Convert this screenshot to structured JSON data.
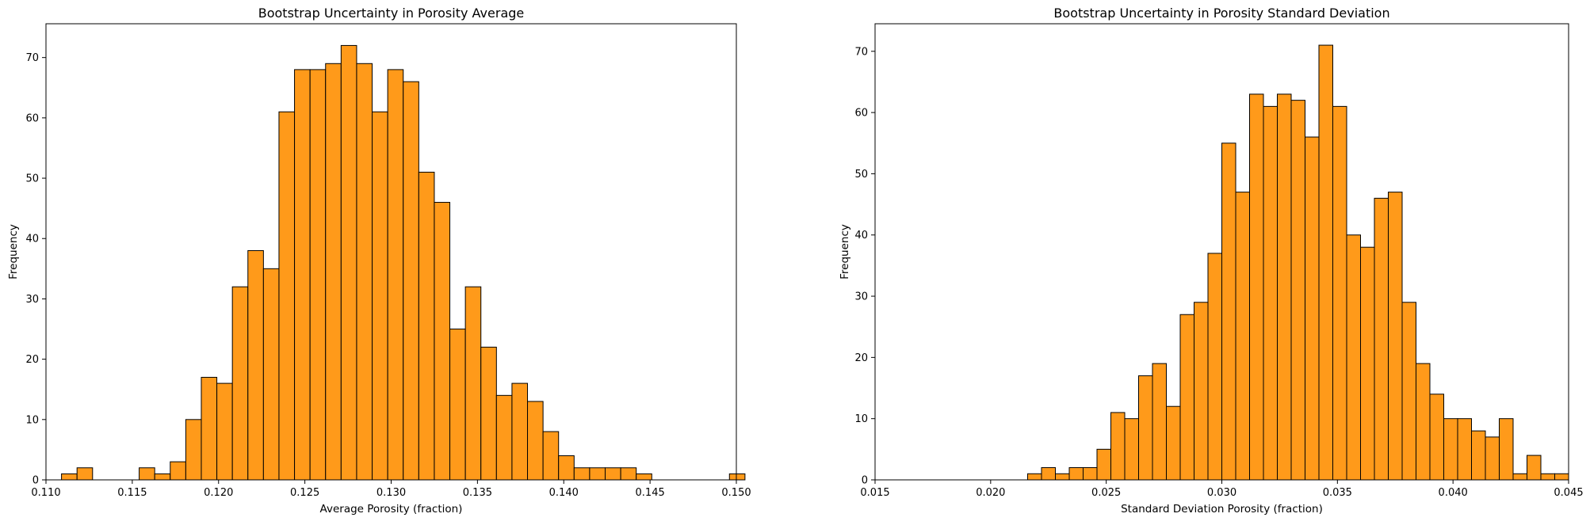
{
  "chart_data": [
    {
      "type": "bar",
      "title": "Bootstrap Uncertainty in Porosity Average",
      "xlabel": "Average Porosity (fraction)",
      "ylabel": "Frequency",
      "xlim": [
        0.11,
        0.15
      ],
      "ylim": [
        0,
        75.6
      ],
      "xticks": [
        "0.110",
        "0.115",
        "0.120",
        "0.125",
        "0.130",
        "0.135",
        "0.140",
        "0.145",
        "0.150"
      ],
      "yticks": [
        "0",
        "10",
        "20",
        "30",
        "40",
        "50",
        "60",
        "70"
      ],
      "bin_start": 0.11,
      "bin_width": 0.0009,
      "values": [
        0,
        1,
        2,
        0,
        0,
        0,
        2,
        1,
        3,
        10,
        17,
        16,
        32,
        38,
        35,
        61,
        68,
        68,
        69,
        72,
        69,
        61,
        68,
        66,
        51,
        46,
        25,
        32,
        22,
        14,
        16,
        13,
        8,
        4,
        2,
        2,
        2,
        2,
        1,
        0,
        0,
        0,
        0,
        0,
        1
      ],
      "bar_color": "#ff9a1a",
      "edge_color": "#000000",
      "grid": false
    },
    {
      "type": "bar",
      "title": "Bootstrap Uncertainty in Porosity Standard Deviation",
      "xlabel": "Standard Deviation Porosity (fraction)",
      "ylabel": "Frequency",
      "xlim": [
        0.015,
        0.045
      ],
      "ylim": [
        0,
        74.5
      ],
      "xticks": [
        "0.015",
        "0.020",
        "0.025",
        "0.030",
        "0.035",
        "0.040",
        "0.045"
      ],
      "yticks": [
        "0",
        "10",
        "20",
        "30",
        "40",
        "50",
        "60",
        "70"
      ],
      "bin_start": 0.015,
      "bin_width": 0.0006,
      "values": [
        0,
        0,
        0,
        0,
        0,
        0,
        0,
        0,
        0,
        0,
        0,
        1,
        2,
        1,
        2,
        2,
        5,
        11,
        10,
        17,
        19,
        12,
        27,
        29,
        37,
        55,
        47,
        63,
        61,
        63,
        62,
        56,
        71,
        61,
        40,
        38,
        46,
        47,
        29,
        19,
        14,
        10,
        10,
        8,
        7,
        10,
        1,
        4,
        1,
        1
      ],
      "bar_color": "#ff9a1a",
      "edge_color": "#000000",
      "grid": false
    }
  ]
}
